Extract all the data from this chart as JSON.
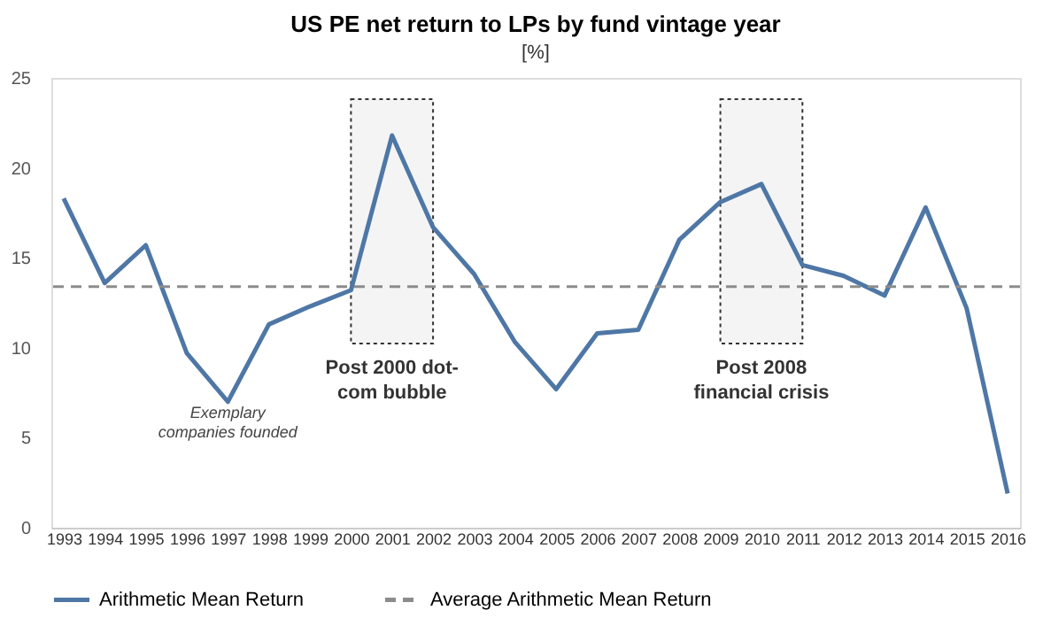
{
  "chart_data": {
    "type": "line",
    "title": "US PE net return to LPs by fund vintage year",
    "subtitle": "[%]",
    "categories": [
      "1993",
      "1994",
      "1995",
      "1996",
      "1997",
      "1998",
      "1999",
      "2000",
      "2001",
      "2002",
      "2003",
      "2004",
      "2005",
      "2006",
      "2007",
      "2008",
      "2009",
      "2010",
      "2011",
      "2012",
      "2013",
      "2014",
      "2015",
      "2016"
    ],
    "series": [
      {
        "name": "Arithmetic Mean Return",
        "color": "#4e77a6",
        "values": [
          18.3,
          13.6,
          15.7,
          9.7,
          7.0,
          11.3,
          12.3,
          13.2,
          21.8,
          16.7,
          14.1,
          10.3,
          7.7,
          10.8,
          11.0,
          16.0,
          18.1,
          19.1,
          14.6,
          14.0,
          12.9,
          17.8,
          12.2,
          1.9
        ]
      }
    ],
    "ylim": [
      0,
      25
    ],
    "yticks": [
      0,
      5,
      10,
      15,
      20,
      25
    ],
    "grid": false,
    "legend": "bottom",
    "line_style": "solid",
    "marker": "none",
    "ref_lines": [
      {
        "axis": "y",
        "value": 13.4,
        "label": "Average Arithmetic Mean Return",
        "color": "#8c8c8c",
        "line_style": "dashed"
      }
    ],
    "bands": [
      {
        "axis": "x",
        "from": "2000",
        "to": "2002",
        "label": "Post 2000 dot-com bubble"
      },
      {
        "axis": "x",
        "from": "2009",
        "to": "2011",
        "label": "Post 2008 financial crisis"
      }
    ],
    "annotations": [
      "Exemplary companies founded"
    ]
  }
}
